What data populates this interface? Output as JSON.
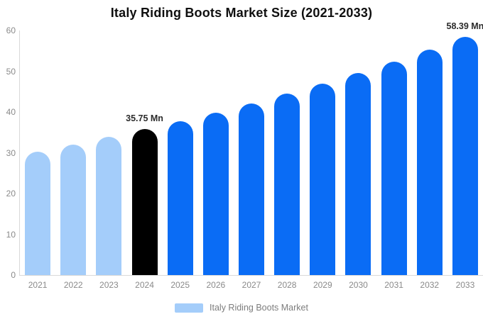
{
  "title": "Italy Riding Boots Market Size (2021-2033)",
  "legend": {
    "label": "Italy Riding Boots Market",
    "swatch_color": "#A4CDFA",
    "position": "bottom-center"
  },
  "colors": {
    "historical_bar": "#A4CDFA",
    "base_year_bar": "#000000",
    "forecast_bar": "#0A6CF5",
    "axis_line": "#d9d9d9",
    "tick_text": "#8a8a8a",
    "annotation_text": "#2b2b2b",
    "background": "#ffffff"
  },
  "chart_data": {
    "type": "bar",
    "title": "Italy Riding Boots Market Size (2021-2033)",
    "xlabel": "",
    "ylabel": "",
    "categories": [
      "2021",
      "2022",
      "2023",
      "2024",
      "2025",
      "2026",
      "2027",
      "2028",
      "2029",
      "2030",
      "2031",
      "2032",
      "2033"
    ],
    "values": [
      30.35,
      32.05,
      33.85,
      35.75,
      37.76,
      39.88,
      42.11,
      44.48,
      46.97,
      49.61,
      52.39,
      55.33,
      58.39
    ],
    "bar_colors": [
      "#A4CDFA",
      "#A4CDFA",
      "#A4CDFA",
      "#000000",
      "#0A6CF5",
      "#0A6CF5",
      "#0A6CF5",
      "#0A6CF5",
      "#0A6CF5",
      "#0A6CF5",
      "#0A6CF5",
      "#0A6CF5",
      "#0A6CF5"
    ],
    "unit": "Mn",
    "ylim": [
      0,
      60
    ],
    "yticks": [
      0,
      10,
      20,
      30,
      40,
      50,
      60
    ],
    "grid": false,
    "legend_position": "bottom",
    "annotations": [
      {
        "category": "2024",
        "index": 3,
        "text": "35.75 Mn"
      },
      {
        "category": "2033",
        "index": 12,
        "text": "58.39 Mn"
      }
    ]
  }
}
